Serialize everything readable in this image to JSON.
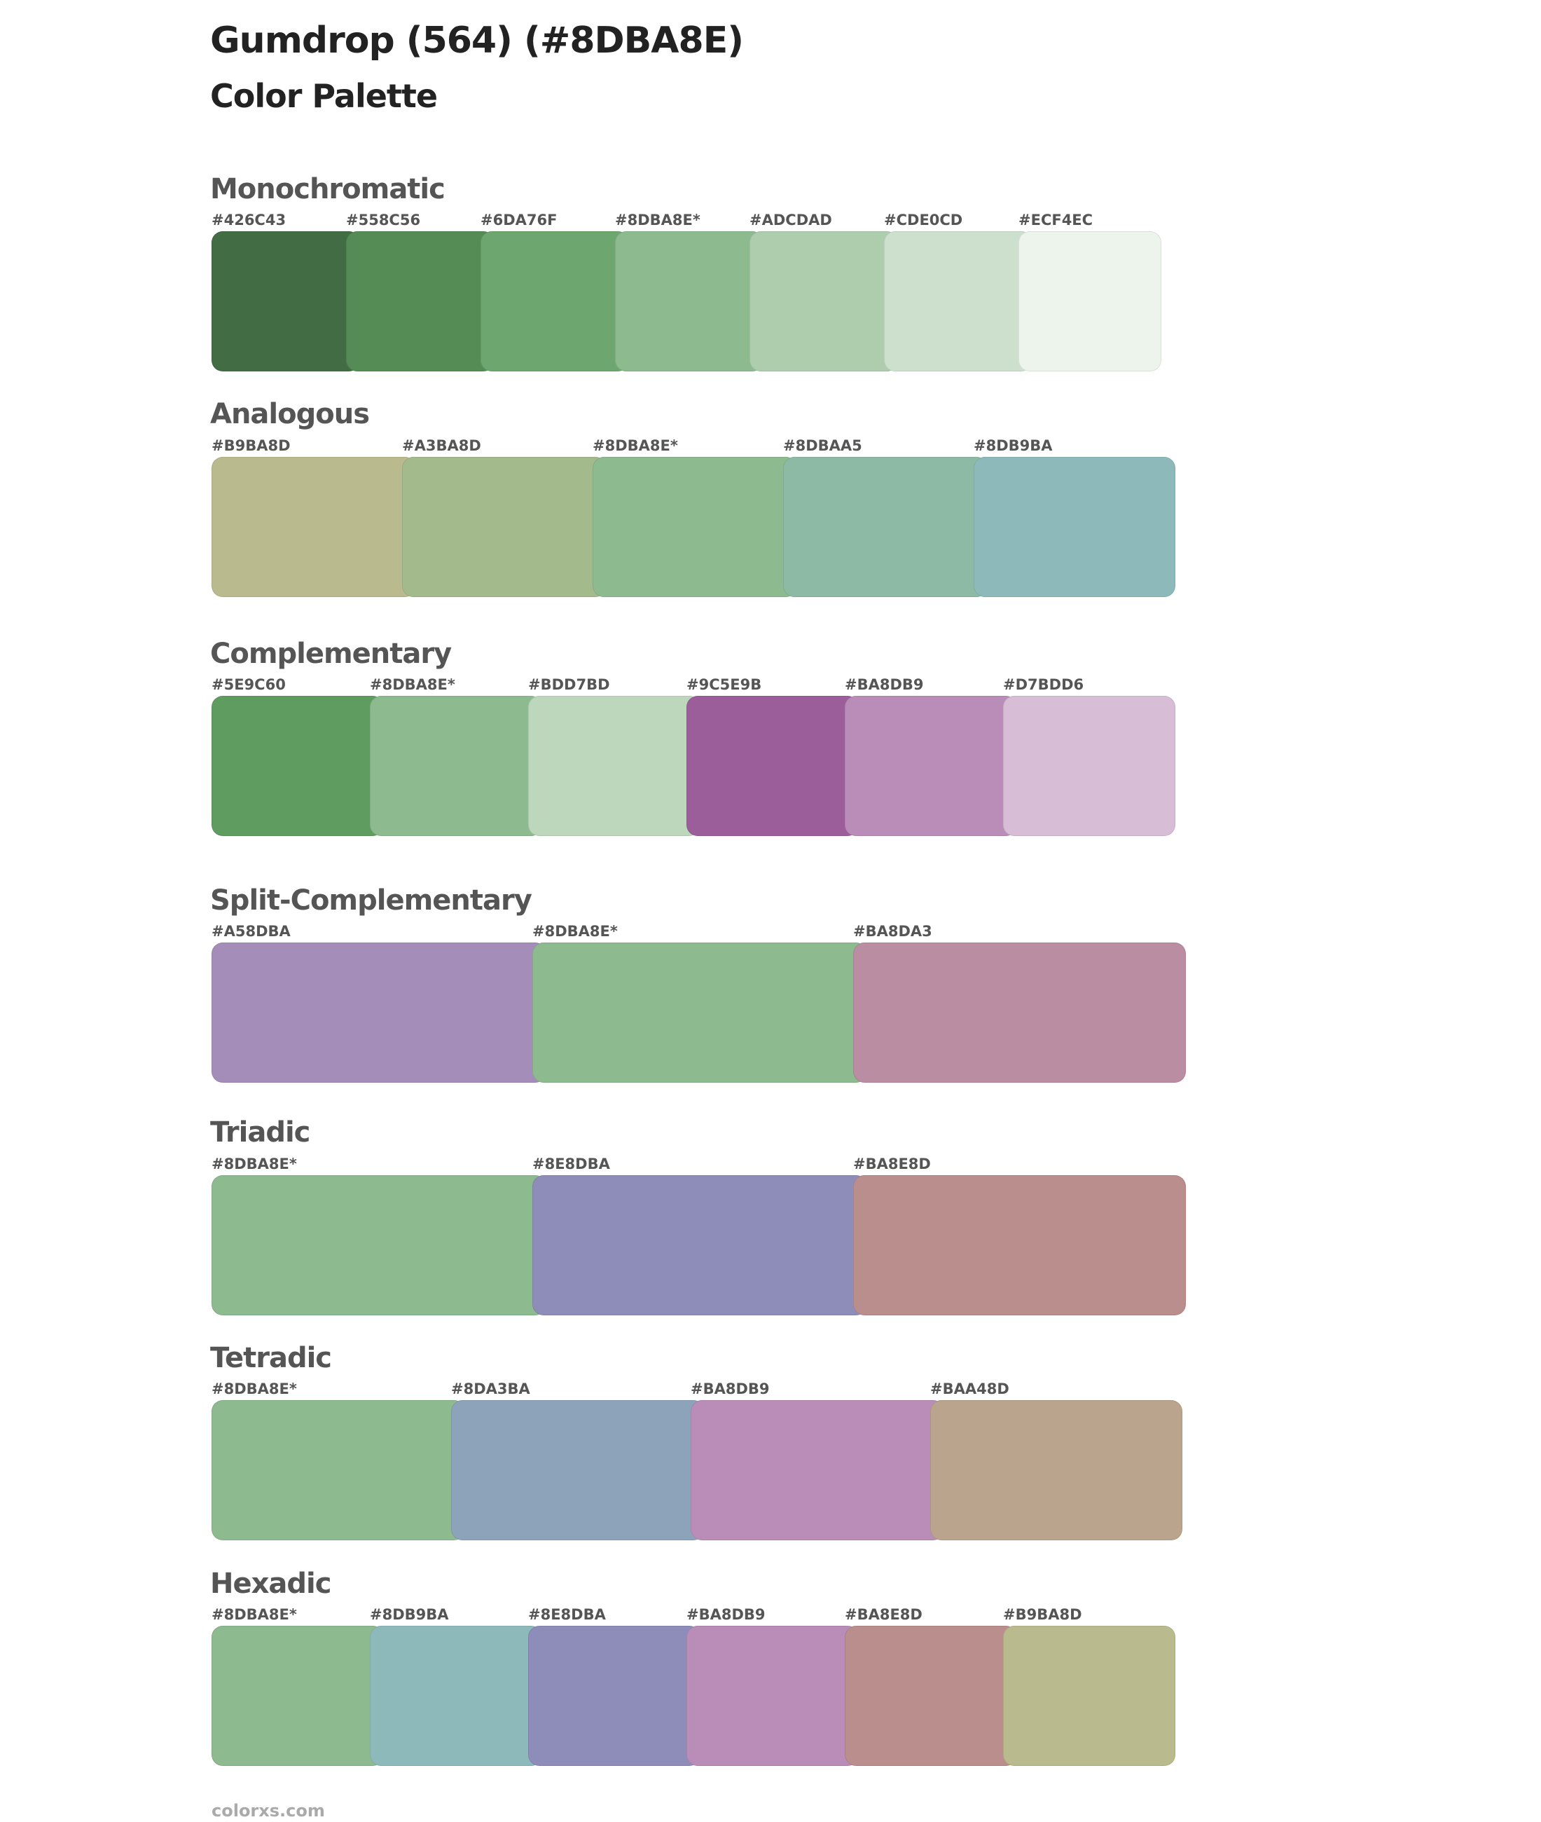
{
  "header": {
    "title": "Gumdrop (564) (#8DBA8E)",
    "subtitle": "Color Palette"
  },
  "sections": [
    {
      "name": "Monochromatic",
      "colors": [
        "#426C43",
        "#558C56",
        "#6DA76F",
        "#8DBA8E*",
        "#ADCDAD",
        "#CDE0CD",
        "#ECF4EC"
      ]
    },
    {
      "name": "Analogous",
      "colors": [
        "#B9BA8D",
        "#A3BA8D",
        "#8DBA8E*",
        "#8DBAA5",
        "#8DB9BA"
      ]
    },
    {
      "name": "Complementary",
      "colors": [
        "#5E9C60",
        "#8DBA8E*",
        "#BDD7BD",
        "#9C5E9B",
        "#BA8DB9",
        "#D7BDD6"
      ]
    },
    {
      "name": "Split-Complementary",
      "colors": [
        "#A58DBA",
        "#8DBA8E*",
        "#BA8DA3"
      ]
    },
    {
      "name": "Triadic",
      "colors": [
        "#8DBA8E*",
        "#8E8DBA",
        "#BA8E8D"
      ]
    },
    {
      "name": "Tetradic",
      "colors": [
        "#8DBA8E*",
        "#8DA3BA",
        "#BA8DB9",
        "#BAA48D"
      ]
    },
    {
      "name": "Hexadic",
      "colors": [
        "#8DBA8E*",
        "#8DB9BA",
        "#8E8DBA",
        "#BA8DB9",
        "#BA8E8D",
        "#B9BA8D"
      ]
    }
  ],
  "footer": {
    "text": "colorxs.com"
  }
}
